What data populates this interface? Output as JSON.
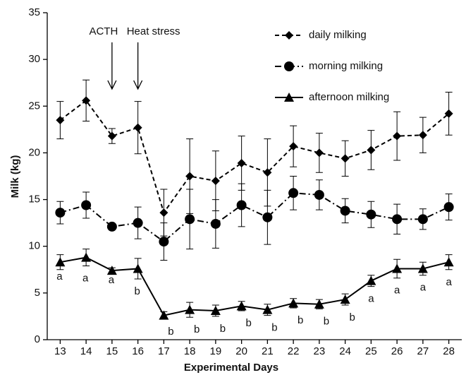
{
  "chart_data": {
    "type": "line",
    "x_label": "Experimental Days",
    "y_label": "Milk (kg)",
    "categories": [
      "13",
      "14",
      "15",
      "16",
      "17",
      "18",
      "19",
      "20",
      "21",
      "22",
      "23",
      "24",
      "25",
      "26",
      "27",
      "28"
    ],
    "ylim": [
      0,
      35
    ],
    "yticks": [
      0,
      5,
      10,
      15,
      20,
      25,
      30,
      35
    ],
    "grid": false,
    "legend": "upper right",
    "series": [
      {
        "name": "daily milking",
        "color": "#000000",
        "marker": "diamond",
        "dash": "6,4",
        "values": [
          23.5,
          25.6,
          21.8,
          22.7,
          13.6,
          17.5,
          17.0,
          18.9,
          17.9,
          20.7,
          20.0,
          19.4,
          20.3,
          21.8,
          21.9,
          24.2
        ],
        "errors": [
          2.0,
          2.2,
          0.8,
          2.8,
          2.5,
          4.0,
          3.2,
          2.9,
          3.6,
          2.2,
          2.1,
          1.9,
          2.1,
          2.6,
          1.9,
          2.3
        ]
      },
      {
        "name": "morning milking",
        "color": "#000000",
        "marker": "circle",
        "dash": "9,4,2,4",
        "values": [
          13.6,
          14.4,
          12.1,
          12.5,
          10.5,
          12.9,
          12.4,
          14.4,
          13.1,
          15.7,
          15.5,
          13.8,
          13.4,
          12.9,
          12.9,
          14.2
        ],
        "errors": [
          1.2,
          1.4,
          0.3,
          1.7,
          2.0,
          3.2,
          2.6,
          2.3,
          2.9,
          1.8,
          1.6,
          1.3,
          1.4,
          1.6,
          1.1,
          1.4
        ]
      },
      {
        "name": "afternoon milking",
        "color": "#000000",
        "marker": "triangle",
        "dash": "none",
        "values": [
          8.3,
          8.8,
          7.4,
          7.6,
          2.6,
          3.2,
          3.1,
          3.6,
          3.2,
          3.9,
          3.8,
          4.3,
          6.3,
          7.6,
          7.6,
          8.3
        ],
        "errors": [
          0.8,
          0.9,
          0.3,
          1.1,
          0.4,
          0.8,
          0.6,
          0.5,
          0.6,
          0.5,
          0.5,
          0.6,
          0.6,
          1.0,
          0.7,
          0.8
        ],
        "letters": [
          "a",
          "a",
          "a",
          "b",
          "b",
          "b",
          "b",
          "b",
          "b",
          "b",
          "b",
          "b",
          "a",
          "a",
          "a",
          "a"
        ]
      }
    ],
    "annotations": [
      {
        "text": "ACTH",
        "at": "15"
      },
      {
        "text": "Heat stress",
        "at": "16"
      }
    ]
  }
}
